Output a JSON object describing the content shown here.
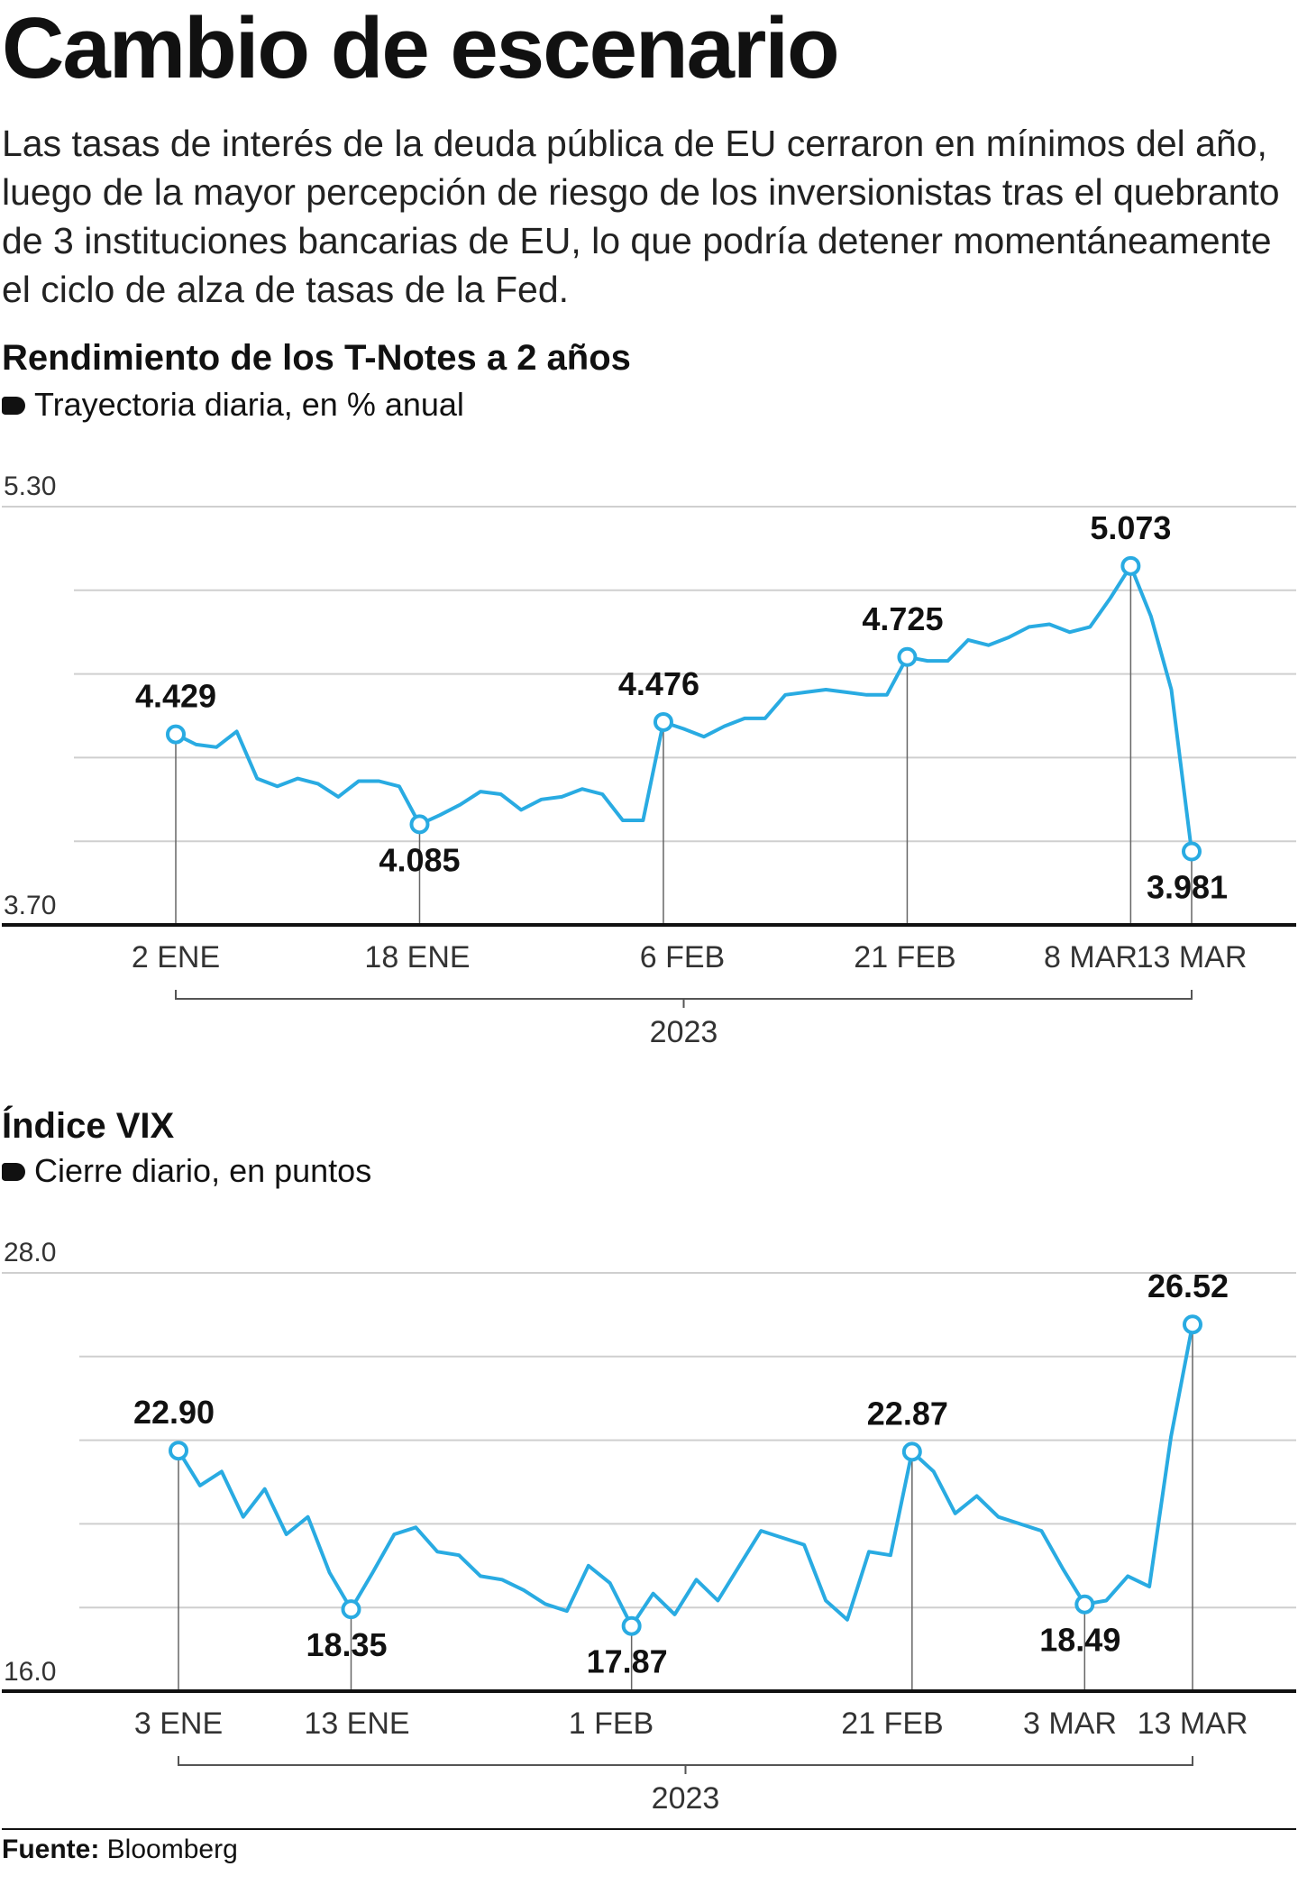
{
  "header": {
    "title": "Cambio de escenario",
    "intro": "Las tasas de interés de la deuda pública de EU cerraron en mínimos del año, luego de la mayor percepción de riesgo de los inversionistas tras el quebranto de 3 instituciones bancarias de EU, lo que podría detener momentáneamente el ciclo de alza de tasas de la Fed."
  },
  "chart_data": [
    {
      "type": "line",
      "title": "Rendimiento de los T-Notes a 2 años",
      "subtitle": "Trayectoria diaria, en % anual",
      "ylim": [
        3.7,
        5.3
      ],
      "y_tick_labels": [
        "5.30",
        "3.70"
      ],
      "grid": true,
      "x_tick_labels": [
        "2 ENE",
        "18 ENE",
        "6 FEB",
        "21 FEB",
        "8 MAR",
        "13 MAR"
      ],
      "year_label": "2023",
      "color": "#29abe2",
      "values": [
        4.429,
        4.39,
        4.38,
        4.44,
        4.26,
        4.23,
        4.26,
        4.24,
        4.19,
        4.25,
        4.25,
        4.23,
        4.085,
        4.12,
        4.16,
        4.21,
        4.2,
        4.14,
        4.18,
        4.19,
        4.22,
        4.2,
        4.1,
        4.1,
        4.476,
        4.45,
        4.42,
        4.46,
        4.49,
        4.49,
        4.58,
        4.59,
        4.6,
        4.59,
        4.58,
        4.58,
        4.725,
        4.71,
        4.71,
        4.79,
        4.77,
        4.8,
        4.84,
        4.85,
        4.82,
        4.84,
        4.95,
        5.073,
        4.88,
        4.6,
        3.981
      ],
      "annotations": [
        {
          "index": 0,
          "label": "4.429"
        },
        {
          "index": 12,
          "label": "4.085"
        },
        {
          "index": 24,
          "label": "4.476"
        },
        {
          "index": 36,
          "label": "4.725"
        },
        {
          "index": 47,
          "label": "5.073"
        },
        {
          "index": 50,
          "label": "3.981"
        }
      ]
    },
    {
      "type": "line",
      "title": "Índice VIX",
      "subtitle": "Cierre diario, en puntos",
      "ylim": [
        16.0,
        28.0
      ],
      "y_tick_labels": [
        "28.0",
        "16.0"
      ],
      "grid": true,
      "x_tick_labels": [
        "3 ENE",
        "13 ENE",
        "1 FEB",
        "21 FEB",
        "3 MAR",
        "13 MAR"
      ],
      "year_label": "2023",
      "color": "#29abe2",
      "values": [
        22.9,
        21.9,
        22.3,
        21.0,
        21.8,
        20.5,
        21.0,
        19.4,
        18.35,
        19.4,
        20.5,
        20.7,
        20.0,
        19.9,
        19.3,
        19.2,
        18.9,
        18.5,
        18.3,
        19.6,
        19.1,
        17.87,
        18.8,
        18.2,
        19.2,
        18.6,
        19.6,
        20.6,
        20.4,
        20.2,
        18.6,
        18.05,
        20.0,
        19.9,
        22.87,
        22.3,
        21.1,
        21.6,
        21.0,
        20.8,
        20.6,
        19.5,
        18.49,
        18.6,
        19.3,
        19.0,
        23.3,
        26.52
      ],
      "annotations": [
        {
          "index": 0,
          "label": "22.90"
        },
        {
          "index": 8,
          "label": "18.35"
        },
        {
          "index": 21,
          "label": "17.87"
        },
        {
          "index": 34,
          "label": "22.87"
        },
        {
          "index": 42,
          "label": "18.49"
        },
        {
          "index": 47,
          "label": "26.52"
        }
      ]
    }
  ],
  "footer": {
    "source_label": "Fuente:",
    "source_value": "Bloomberg"
  }
}
